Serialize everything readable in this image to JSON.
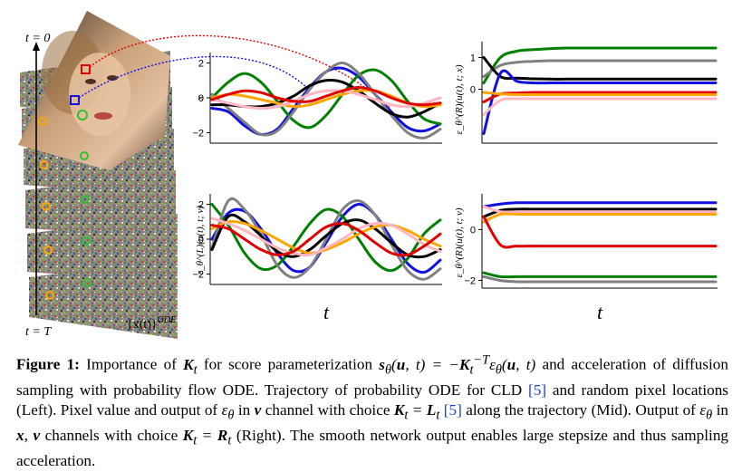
{
  "left_panel": {
    "label_top": "t = 0",
    "label_bottom": "t = T",
    "traj_label": "{x(t)}ODE"
  },
  "chart_data": [
    {
      "type": "line",
      "ylabel": "x",
      "yticks": [
        "2",
        "0",
        "−2"
      ],
      "ylim": [
        -2.6,
        2.6
      ],
      "xlabel": "",
      "series": [
        {
          "color": "#1010e0",
          "values": [
            -0.6,
            -0.8,
            -1.6,
            -2.1,
            -1.8,
            -0.6,
            0.6,
            1.5,
            1.7,
            1.2,
            0.2,
            -0.8,
            -1.7,
            -1.9,
            -1.5
          ]
        },
        {
          "color": "#008000",
          "values": [
            0.0,
            0.9,
            1.4,
            0.9,
            -0.2,
            -1.3,
            -1.7,
            -1.0,
            0.2,
            1.3,
            1.6,
            1.0,
            -0.2,
            -1.2,
            -1.5
          ]
        },
        {
          "color": "#808080",
          "values": [
            0.2,
            -0.6,
            -1.4,
            -2.1,
            -1.9,
            -0.8,
            0.5,
            1.5,
            2.0,
            1.4,
            0.2,
            -1.0,
            -2.0,
            -2.3,
            -1.8
          ]
        },
        {
          "color": "#000000",
          "values": [
            -0.4,
            -0.4,
            -0.5,
            -0.5,
            -0.3,
            0.1,
            0.7,
            1.0,
            0.9,
            0.4,
            -0.3,
            -0.9,
            -1.1,
            -0.8,
            -0.3
          ]
        },
        {
          "color": "#ffa500",
          "values": [
            0.0,
            0.2,
            0.1,
            -0.1,
            -0.3,
            -0.5,
            -0.4,
            -0.1,
            0.2,
            0.4,
            0.4,
            0.1,
            -0.3,
            -0.5,
            -0.4
          ]
        },
        {
          "color": "#ffb6c1",
          "values": [
            -0.1,
            -0.3,
            -0.5,
            -0.6,
            -0.5,
            -0.2,
            0.2,
            0.4,
            0.4,
            0.2,
            -0.1,
            -0.4,
            -0.5,
            -0.3,
            0.0
          ]
        },
        {
          "color": "#e00000",
          "values": [
            -0.1,
            0.2,
            0.4,
            0.3,
            0.0,
            -0.2,
            -0.2,
            0.1,
            0.4,
            0.6,
            0.4,
            0.0,
            -0.3,
            -0.4,
            -0.3
          ]
        }
      ]
    },
    {
      "type": "line",
      "ylabel": "ε_θ^(R)(u(t), t; x)",
      "yticks": [
        "1",
        "0"
      ],
      "ylim": [
        -1.7,
        1.5
      ],
      "xlabel": "",
      "series": [
        {
          "color": "#008000",
          "values": [
            0.2,
            1.0,
            1.2,
            1.25,
            1.28,
            1.3,
            1.3,
            1.3,
            1.3,
            1.3,
            1.3,
            1.3,
            1.3,
            1.3,
            1.3
          ]
        },
        {
          "color": "#808080",
          "values": [
            0.4,
            0.75,
            0.85,
            0.88,
            0.9,
            0.9,
            0.9,
            0.9,
            0.9,
            0.9,
            0.9,
            0.9,
            0.9,
            0.9,
            0.9
          ]
        },
        {
          "color": "#000000",
          "values": [
            1.0,
            0.4,
            0.35,
            0.33,
            0.32,
            0.32,
            0.32,
            0.32,
            0.32,
            0.32,
            0.32,
            0.32,
            0.32,
            0.32,
            0.32
          ]
        },
        {
          "color": "#1010e0",
          "values": [
            -1.4,
            0.5,
            0.25,
            0.2,
            0.2,
            0.2,
            0.2,
            0.2,
            0.2,
            0.2,
            0.2,
            0.2,
            0.2,
            0.2,
            0.2
          ]
        },
        {
          "color": "#e00000",
          "values": [
            -0.4,
            -0.15,
            -0.12,
            -0.1,
            -0.1,
            -0.1,
            -0.1,
            -0.1,
            -0.1,
            -0.1,
            -0.1,
            -0.1,
            -0.1,
            -0.1,
            -0.1
          ]
        },
        {
          "color": "#ffa500",
          "values": [
            -0.1,
            -0.15,
            -0.17,
            -0.17,
            -0.17,
            -0.17,
            -0.17,
            -0.17,
            -0.17,
            -0.17,
            -0.17,
            -0.17,
            -0.17,
            -0.17,
            -0.17
          ]
        },
        {
          "color": "#ffb6c1",
          "values": [
            -0.8,
            -0.35,
            -0.3,
            -0.3,
            -0.3,
            -0.3,
            -0.3,
            -0.3,
            -0.3,
            -0.3,
            -0.3,
            -0.3,
            -0.3,
            -0.3,
            -0.3
          ]
        }
      ]
    },
    {
      "type": "line",
      "ylabel": "ε_θ^(L)(u(t), t; v)",
      "yticks": [
        "2",
        "0",
        "−2"
      ],
      "ylim": [
        -2.6,
        2.6
      ],
      "xlabel": "t",
      "series": [
        {
          "color": "#1010e0",
          "values": [
            0.0,
            1.5,
            1.6,
            0.6,
            -0.8,
            -1.8,
            -1.6,
            -0.2,
            1.3,
            2.0,
            1.4,
            0.0,
            -1.4,
            -1.9,
            -1.2
          ]
        },
        {
          "color": "#008000",
          "values": [
            2.0,
            0.8,
            -0.8,
            -1.7,
            -1.5,
            -0.4,
            0.9,
            1.7,
            1.3,
            0.0,
            -1.3,
            -1.8,
            -1.1,
            0.3,
            1.1
          ]
        },
        {
          "color": "#808080",
          "values": [
            -0.5,
            2.2,
            1.7,
            0.3,
            -1.5,
            -2.2,
            -1.6,
            0.0,
            1.7,
            2.2,
            1.4,
            -0.3,
            -1.8,
            -2.3,
            -1.7
          ]
        },
        {
          "color": "#000000",
          "values": [
            -0.6,
            1.3,
            1.0,
            0.2,
            -0.7,
            -1.0,
            -0.6,
            0.2,
            0.9,
            1.1,
            0.6,
            -0.2,
            -0.9,
            -1.0,
            -0.6
          ]
        },
        {
          "color": "#ffa500",
          "values": [
            0.6,
            1.0,
            0.9,
            0.5,
            0.0,
            -0.5,
            -0.8,
            -0.6,
            -0.2,
            0.3,
            0.7,
            0.8,
            0.5,
            0.0,
            -0.4
          ]
        },
        {
          "color": "#ffb6c1",
          "values": [
            1.2,
            0.9,
            0.5,
            0.0,
            -0.5,
            -0.8,
            -0.9,
            -0.5,
            0.0,
            0.6,
            0.9,
            0.8,
            0.3,
            -0.3,
            -0.7
          ]
        },
        {
          "color": "#e00000",
          "values": [
            0.8,
            0.6,
            0.0,
            -0.6,
            -0.9,
            -0.7,
            0.0,
            0.7,
            0.9,
            0.5,
            -0.2,
            -0.8,
            -0.9,
            -0.4,
            0.3
          ]
        }
      ]
    },
    {
      "type": "line",
      "ylabel": "ε_θ^(R)(u(t), t; v)",
      "yticks": [
        "0",
        "−2"
      ],
      "ylim": [
        -2.3,
        1.4
      ],
      "xlabel": "t",
      "series": [
        {
          "color": "#1010e0",
          "values": [
            0.9,
            1.0,
            1.05,
            1.05,
            1.05,
            1.05,
            1.05,
            1.05,
            1.05,
            1.05,
            1.05,
            1.05,
            1.05,
            1.05,
            1.05
          ]
        },
        {
          "color": "#000000",
          "values": [
            0.5,
            0.75,
            0.8,
            0.8,
            0.8,
            0.8,
            0.8,
            0.8,
            0.8,
            0.8,
            0.8,
            0.8,
            0.8,
            0.8,
            0.8
          ]
        },
        {
          "color": "#ffb6c1",
          "values": [
            0.9,
            0.7,
            0.7,
            0.7,
            0.7,
            0.7,
            0.7,
            0.7,
            0.7,
            0.7,
            0.7,
            0.7,
            0.7,
            0.7,
            0.7
          ]
        },
        {
          "color": "#ffa500",
          "values": [
            0.3,
            0.6,
            0.6,
            0.6,
            0.6,
            0.6,
            0.6,
            0.6,
            0.6,
            0.6,
            0.6,
            0.6,
            0.6,
            0.6,
            0.6
          ]
        },
        {
          "color": "#e00000",
          "values": [
            0.5,
            -0.6,
            -0.65,
            -0.65,
            -0.65,
            -0.65,
            -0.65,
            -0.65,
            -0.65,
            -0.65,
            -0.65,
            -0.65,
            -0.65,
            -0.65,
            -0.65
          ]
        },
        {
          "color": "#008000",
          "values": [
            -1.7,
            -1.85,
            -1.85,
            -1.85,
            -1.85,
            -1.85,
            -1.85,
            -1.85,
            -1.85,
            -1.85,
            -1.85,
            -1.85,
            -1.85,
            -1.85,
            -1.85
          ]
        },
        {
          "color": "#808080",
          "values": [
            -1.85,
            -2.0,
            -2.05,
            -2.05,
            -2.05,
            -2.05,
            -2.05,
            -2.05,
            -2.05,
            -2.05,
            -2.05,
            -2.05,
            -2.05,
            -2.05,
            -2.05
          ]
        }
      ]
    }
  ],
  "caption": {
    "label": "Figure 1:",
    "line1": "Importance of K_t for score parameterization s_θ(u, t) = −K_t^{−T} ε_θ(u, t) and acceleration of diffusion sampling with probability flow ODE.",
    "p1": "Importance of ",
    "p2": " for score parameterization ",
    "p3": " and acceleration of diffusion sampling with probability flow ODE. Trajectory of probability ODE for CLD ",
    "ref1": "[5]",
    "p4": " and random pixel locations (Left). Pixel value and output of ",
    "p5": " in ",
    "p6": " channel with choice ",
    "ref2": "[5]",
    "p7": " along the trajectory (Mid). Output of ",
    "p8": " in ",
    "p9": " channels with choice ",
    "p10": " (Right). The smooth network output enables large stepsize and thus sampling acceleration."
  }
}
